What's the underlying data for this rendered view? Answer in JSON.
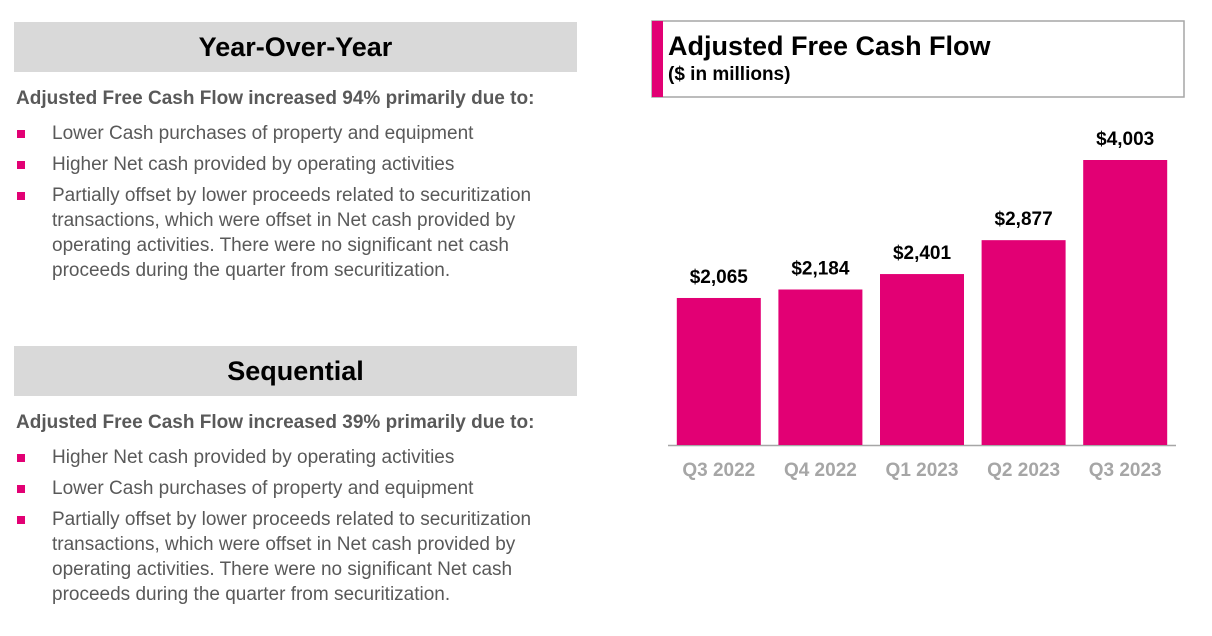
{
  "sections": [
    {
      "heading": "Year-Over-Year",
      "intro": "Adjusted Free Cash Flow increased 94% primarily due to:",
      "bullets": [
        "Lower Cash purchases of property and equipment",
        "Higher Net cash provided by operating activities",
        "Partially offset by lower proceeds related to securitization transactions, which were offset in Net cash provided by operating activities. There were no significant net cash proceeds during the quarter from securitization."
      ]
    },
    {
      "heading": "Sequential",
      "intro": "Adjusted Free Cash Flow increased 39% primarily due to:",
      "bullets": [
        "Higher Net cash provided by operating activities",
        "Lower Cash purchases of property and equipment",
        "Partially offset by lower proceeds related to securitization transactions, which were offset in Net cash provided by operating activities. There were no significant Net cash proceeds during the quarter from securitization."
      ]
    }
  ],
  "chart_data": {
    "type": "bar",
    "title": "Adjusted Free Cash Flow",
    "subtitle": "($ in millions)",
    "categories": [
      "Q3 2022",
      "Q4 2022",
      "Q1 2023",
      "Q2 2023",
      "Q3 2023"
    ],
    "values": [
      2065,
      2184,
      2401,
      2877,
      4003
    ],
    "value_labels": [
      "$2,065",
      "$2,184",
      "$2,401",
      "$2,877",
      "$4,003"
    ],
    "color": "#e20074"
  }
}
